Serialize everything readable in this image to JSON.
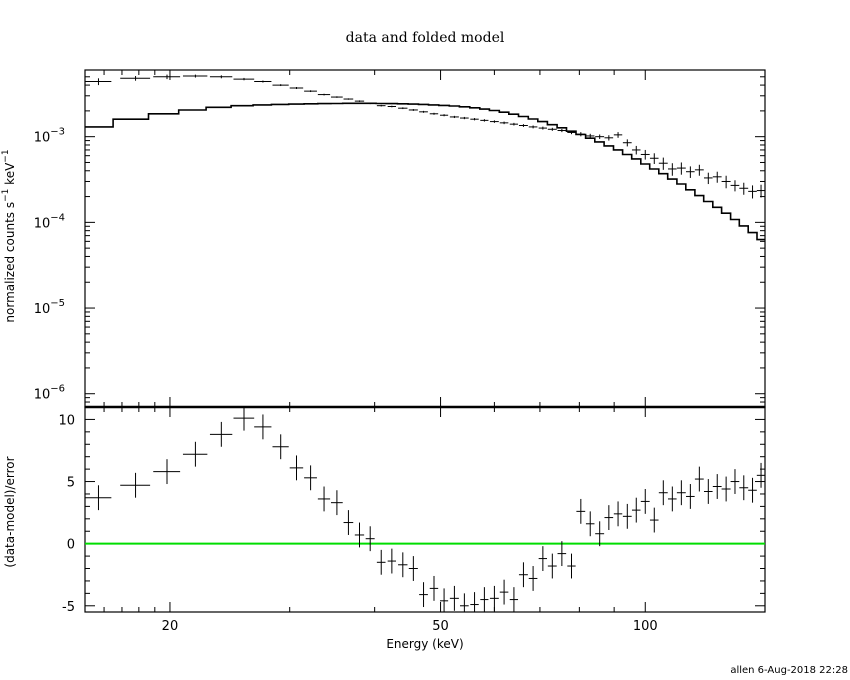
{
  "chart_data": [
    {
      "type": "line",
      "panel": "top",
      "title": "data and folded model",
      "ylabel_main": "normalized counts s",
      "ylabel_exp1": "−1",
      "ylabel_mid": " keV",
      "ylabel_exp2": "−1",
      "x_scale": "log",
      "y_scale": "log",
      "xlim": [
        15,
        150
      ],
      "ylim": [
        7e-07,
        0.006
      ],
      "yticks": [
        {
          "mantissa": "10",
          "exp": "−3",
          "value": 0.001
        },
        {
          "mantissa": "10",
          "exp": "−4",
          "value": 0.0001
        },
        {
          "mantissa": "10",
          "exp": "−5",
          "value": 1e-05
        },
        {
          "mantissa": "10",
          "exp": "−6",
          "value": 1e-06
        }
      ],
      "series": [
        {
          "kind": "data",
          "points": [
            [
              15.7,
              0.0044,
              0.7,
              0.0004
            ],
            [
              17.8,
              0.0048,
              0.9,
              0.0003
            ],
            [
              19.8,
              0.005,
              0.9,
              0.0003
            ],
            [
              21.8,
              0.0051,
              0.9,
              0.0002
            ],
            [
              23.8,
              0.005,
              0.9,
              0.0002
            ],
            [
              25.7,
              0.0047,
              0.9,
              0.00015
            ],
            [
              27.4,
              0.0044,
              0.8,
              0.00012
            ],
            [
              29.1,
              0.004,
              0.8,
              0.0001
            ],
            [
              30.7,
              0.0037,
              0.7,
              0.0001
            ],
            [
              32.2,
              0.0034,
              0.7,
              8e-05
            ],
            [
              33.7,
              0.0031,
              0.7,
              7e-05
            ],
            [
              35.2,
              0.0029,
              0.7,
              6e-05
            ],
            [
              36.6,
              0.00275,
              0.6,
              5e-05
            ],
            [
              38.0,
              0.0026,
              0.6,
              5e-05
            ],
            [
              39.4,
              0.00245,
              0.6,
              5e-05
            ],
            [
              40.9,
              0.0023,
              0.6,
              5e-05
            ],
            [
              42.4,
              0.00225,
              0.6,
              5e-05
            ],
            [
              44.0,
              0.00215,
              0.7,
              5e-05
            ],
            [
              45.6,
              0.00205,
              0.7,
              5e-05
            ],
            [
              47.2,
              0.00195,
              0.7,
              5e-05
            ],
            [
              48.9,
              0.00185,
              0.7,
              5e-05
            ],
            [
              50.6,
              0.00178,
              0.7,
              5e-05
            ],
            [
              52.4,
              0.0017,
              0.8,
              5e-05
            ],
            [
              54.2,
              0.00165,
              0.8,
              5e-05
            ],
            [
              56.1,
              0.0016,
              0.8,
              5e-05
            ],
            [
              58.0,
              0.00155,
              0.8,
              5e-05
            ],
            [
              60.0,
              0.0015,
              0.9,
              5e-05
            ],
            [
              62.0,
              0.00145,
              0.9,
              5e-05
            ],
            [
              64.1,
              0.0014,
              0.9,
              5e-05
            ],
            [
              66.2,
              0.00135,
              1.0,
              5e-05
            ],
            [
              68.4,
              0.0013,
              1.0,
              5e-05
            ],
            [
              70.7,
              0.00126,
              1.0,
              5e-05
            ],
            [
              73.0,
              0.00122,
              1.1,
              5e-05
            ],
            [
              75.4,
              0.00118,
              1.1,
              5e-05
            ],
            [
              77.9,
              0.00112,
              1.1,
              5e-05
            ],
            [
              80.4,
              0.00107,
              1.2,
              6e-05
            ],
            [
              83.0,
              0.00102,
              1.2,
              6e-05
            ],
            [
              85.7,
              0.001,
              1.3,
              6e-05
            ],
            [
              88.4,
              0.00097,
              1.3,
              7e-05
            ],
            [
              91.2,
              0.00105,
              1.3,
              8e-05
            ],
            [
              94.1,
              0.00085,
              1.4,
              8e-05
            ],
            [
              97.0,
              0.0007,
              1.4,
              8e-05
            ],
            [
              100.0,
              0.00062,
              1.5,
              8e-05
            ],
            [
              103.1,
              0.00056,
              1.5,
              8e-05
            ],
            [
              106.3,
              0.00049,
              1.6,
              8e-05
            ],
            [
              109.6,
              0.00042,
              1.6,
              7e-05
            ],
            [
              113.0,
              0.00043,
              1.7,
              7e-05
            ],
            [
              116.5,
              0.00039,
              1.7,
              6e-05
            ],
            [
              120.1,
              0.00041,
              1.8,
              6e-05
            ],
            [
              123.8,
              0.00033,
              1.8,
              5e-05
            ],
            [
              127.6,
              0.00034,
              1.9,
              5e-05
            ],
            [
              131.5,
              0.0003,
              2.0,
              5e-05
            ],
            [
              135.5,
              0.00027,
              2.0,
              4e-05
            ],
            [
              139.6,
              0.00025,
              2.1,
              4e-05
            ],
            [
              143.8,
              0.00023,
              2.1,
              4e-05
            ],
            [
              148.0,
              0.000235,
              2.1,
              4e-05
            ]
          ]
        },
        {
          "kind": "model_step",
          "edges": [
            15,
            16.5,
            18.6,
            20.6,
            22.6,
            24.6,
            26.5,
            28.2,
            29.9,
            31.5,
            33.0,
            34.5,
            35.9,
            37.3,
            38.7,
            40.2,
            41.6,
            43.2,
            44.8,
            46.4,
            48.0,
            49.7,
            51.5,
            53.3,
            55.2,
            57.1,
            59.0,
            61.0,
            63.0,
            65.1,
            67.3,
            69.5,
            71.8,
            74.2,
            76.6,
            79.1,
            81.7,
            84.3,
            87.0,
            89.8,
            92.6,
            95.5,
            98.5,
            101.5,
            104.7,
            107.9,
            111.3,
            114.7,
            118.3,
            121.9,
            125.7,
            129.5,
            133.5,
            137.5,
            141.7,
            146.0,
            150
          ],
          "values": [
            0.0013,
            0.0016,
            0.00185,
            0.00205,
            0.0022,
            0.0023,
            0.00235,
            0.00238,
            0.0024,
            0.00242,
            0.00243,
            0.00244,
            0.00245,
            0.00245,
            0.00245,
            0.00244,
            0.00243,
            0.00242,
            0.0024,
            0.00238,
            0.00235,
            0.00232,
            0.00228,
            0.00223,
            0.00217,
            0.0021,
            0.00202,
            0.00193,
            0.00183,
            0.00172,
            0.00161,
            0.0015,
            0.00138,
            0.00127,
            0.00116,
            0.00106,
            0.00096,
            0.00087,
            0.00078,
            0.0007,
            0.00062,
            0.00055,
            0.00048,
            0.00042,
            0.00037,
            0.00032,
            0.00028,
            0.00024,
            0.000205,
            0.000175,
            0.00015,
            0.000128,
            0.000108,
            9.1e-05,
            7.6e-05,
            6.3e-05
          ]
        }
      ]
    },
    {
      "type": "scatter",
      "panel": "bottom",
      "xlabel": "Energy (keV)",
      "ylabel": "(data-model)/error",
      "x_scale": "log",
      "xlim": [
        15,
        150
      ],
      "ylim": [
        -5.5,
        11
      ],
      "xticks": [
        20,
        50,
        100
      ],
      "yticks": [
        10,
        5,
        0,
        -5
      ],
      "zero_line_color": "#00dd00",
      "points": [
        [
          15.7,
          3.7,
          0.7,
          1.0
        ],
        [
          17.8,
          4.7,
          0.9,
          1.0
        ],
        [
          19.8,
          5.8,
          0.9,
          1.0
        ],
        [
          21.8,
          7.2,
          0.9,
          1.0
        ],
        [
          23.8,
          8.8,
          0.9,
          1.0
        ],
        [
          25.7,
          10.1,
          0.9,
          1.0
        ],
        [
          27.4,
          9.4,
          0.8,
          1.0
        ],
        [
          29.1,
          7.8,
          0.8,
          1.0
        ],
        [
          30.7,
          6.1,
          0.7,
          1.0
        ],
        [
          32.2,
          5.3,
          0.7,
          1.0
        ],
        [
          33.7,
          3.6,
          0.7,
          1.0
        ],
        [
          35.2,
          3.3,
          0.7,
          1.0
        ],
        [
          36.6,
          1.7,
          0.6,
          1.0
        ],
        [
          38.0,
          0.7,
          0.6,
          1.0
        ],
        [
          39.4,
          0.4,
          0.6,
          1.0
        ],
        [
          40.9,
          -1.5,
          0.6,
          1.0
        ],
        [
          42.4,
          -1.4,
          0.6,
          1.0
        ],
        [
          44.0,
          -1.7,
          0.7,
          1.0
        ],
        [
          45.6,
          -2.0,
          0.7,
          1.0
        ],
        [
          47.2,
          -4.1,
          0.7,
          1.0
        ],
        [
          48.9,
          -3.6,
          0.7,
          1.0
        ],
        [
          50.6,
          -4.6,
          0.7,
          1.0
        ],
        [
          52.4,
          -4.4,
          0.8,
          1.0
        ],
        [
          54.2,
          -5.0,
          0.8,
          1.0
        ],
        [
          56.1,
          -4.9,
          0.8,
          1.0
        ],
        [
          58.0,
          -4.5,
          0.8,
          1.0
        ],
        [
          60.0,
          -4.4,
          0.9,
          1.0
        ],
        [
          62.0,
          -3.9,
          0.9,
          1.0
        ],
        [
          64.1,
          -4.5,
          0.9,
          1.0
        ],
        [
          66.2,
          -2.5,
          1.0,
          1.0
        ],
        [
          68.4,
          -2.8,
          1.0,
          1.0
        ],
        [
          70.7,
          -1.2,
          1.0,
          1.0
        ],
        [
          73.0,
          -1.8,
          1.1,
          1.0
        ],
        [
          75.4,
          -0.8,
          1.1,
          1.0
        ],
        [
          77.9,
          -1.8,
          1.1,
          1.0
        ],
        [
          80.4,
          2.6,
          1.2,
          1.0
        ],
        [
          83.0,
          1.6,
          1.2,
          1.0
        ],
        [
          85.7,
          0.8,
          1.3,
          1.0
        ],
        [
          88.4,
          2.1,
          1.3,
          1.0
        ],
        [
          91.2,
          2.4,
          1.3,
          1.0
        ],
        [
          94.1,
          2.2,
          1.4,
          1.0
        ],
        [
          97.0,
          2.7,
          1.4,
          1.0
        ],
        [
          100.0,
          3.4,
          1.5,
          1.0
        ],
        [
          103.1,
          1.9,
          1.5,
          1.0
        ],
        [
          106.3,
          4.1,
          1.6,
          1.0
        ],
        [
          109.6,
          3.6,
          1.6,
          1.0
        ],
        [
          113.0,
          4.1,
          1.7,
          1.0
        ],
        [
          116.5,
          3.8,
          1.7,
          1.0
        ],
        [
          120.1,
          5.2,
          1.8,
          1.0
        ],
        [
          123.8,
          4.2,
          1.8,
          1.0
        ],
        [
          127.6,
          4.6,
          1.9,
          1.0
        ],
        [
          131.5,
          4.4,
          2.0,
          1.0
        ],
        [
          135.5,
          5.0,
          2.0,
          1.0
        ],
        [
          139.6,
          4.5,
          2.1,
          1.0
        ],
        [
          143.8,
          4.3,
          2.1,
          1.0
        ],
        [
          148.0,
          5.5,
          2.1,
          1.0
        ]
      ]
    }
  ],
  "footer": "allen  6-Aug-2018 22:28"
}
